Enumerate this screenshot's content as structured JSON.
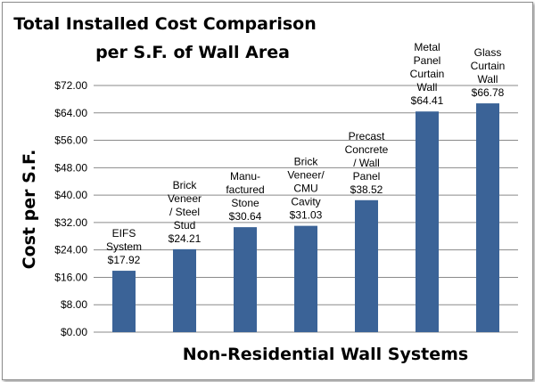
{
  "chart_data": {
    "type": "bar",
    "title_lines": [
      "Total Installed Cost Comparison",
      "per S.F. of Wall  Area"
    ],
    "xlabel": "Non-Residential Wall Systems",
    "ylabel": "Cost per S.F.",
    "ylim": [
      0,
      72
    ],
    "yticks": [
      "$0.00",
      "$8.00",
      "$16.00",
      "$24.00",
      "$32.00",
      "$40.00",
      "$48.00",
      "$56.00",
      "$64.00",
      "$72.00"
    ],
    "grid": true,
    "bar_color": "#3b6397",
    "categories": [
      "EIFS System",
      "Brick Veneer / Steel Stud",
      "Manu-factured Stone",
      "Brick Veneer/ CMU Cavity",
      "Precast Concrete / Wall Panel",
      "Metal Panel Curtain Wall",
      "Glass Curtain Wall"
    ],
    "values": [
      17.92,
      24.21,
      30.64,
      31.03,
      38.52,
      64.41,
      66.78
    ],
    "data_labels": [
      [
        "EIFS",
        "System",
        "$17.92"
      ],
      [
        "Brick",
        "Veneer",
        "/ Steel",
        "Stud",
        "$24.21"
      ],
      [
        "Manu-",
        "factured",
        "Stone",
        "$30.64"
      ],
      [
        "Brick",
        "Veneer/",
        "CMU",
        "Cavity",
        "$31.03"
      ],
      [
        "Precast",
        "Concrete",
        "/ Wall",
        "Panel",
        "$38.52"
      ],
      [
        "Metal",
        "Panel",
        "Curtain",
        "Wall",
        "$64.41"
      ],
      [
        "Glass",
        "Curtain",
        "Wall",
        "$66.78"
      ]
    ]
  }
}
